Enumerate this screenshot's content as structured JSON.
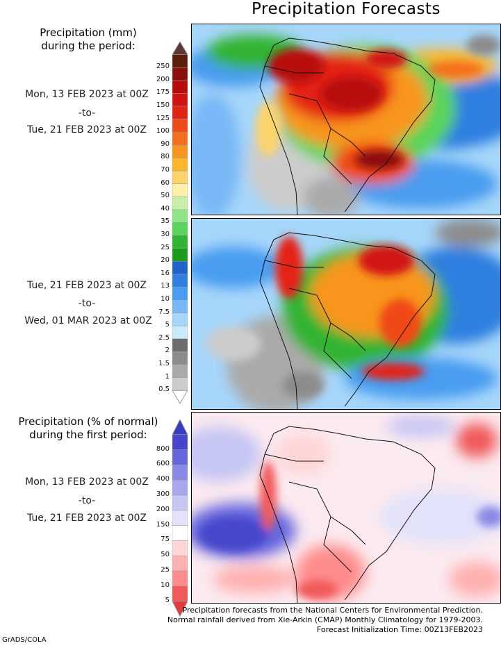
{
  "title": "Precipitation Forecasts",
  "top_heading": [
    "Precipitation (mm)",
    "during the period:"
  ],
  "period1": {
    "start": "Mon, 13 FEB 2023 at 00Z",
    "sep": "-to-",
    "end": "Tue, 21 FEB 2023 at 00Z"
  },
  "period2": {
    "start": "Tue, 21 FEB 2023 at 00Z",
    "sep": "-to-",
    "end": "Wed, 01 MAR 2023 at 00Z"
  },
  "bottom_heading": [
    "Precipitation (% of normal)",
    "during the first period:"
  ],
  "period3": {
    "start": "Mon, 13 FEB 2023 at 00Z",
    "sep": "-to-",
    "end": "Tue, 21 FEB 2023 at 00Z"
  },
  "mm_colorbar": {
    "labels": [
      "250",
      "200",
      "175",
      "150",
      "125",
      "100",
      "90",
      "80",
      "70",
      "60",
      "50",
      "40",
      "35",
      "30",
      "25",
      "20",
      "16",
      "13",
      "10",
      "7.5",
      "5",
      "2.5",
      "2",
      "1.5",
      "1",
      "0.5"
    ],
    "colors": [
      "#5a1e0a",
      "#8b0f0a",
      "#b80c0c",
      "#d11212",
      "#e42314",
      "#f04a18",
      "#f36e1e",
      "#f8951f",
      "#fbb62a",
      "#fdd46a",
      "#fdf0a8",
      "#c8f0a8",
      "#8fe486",
      "#5ad45a",
      "#32b432",
      "#1c9a1c",
      "#1e64c8",
      "#2f7fe0",
      "#4a9cf0",
      "#78b8f6",
      "#a6d6fa",
      "#c8ecfa",
      "#6c6c6c",
      "#8c8c8c",
      "#aaaaaa",
      "#cccccc"
    ],
    "top_color": "#5a3a34"
  },
  "pct_colorbar": {
    "labels": [
      "800",
      "600",
      "400",
      "300",
      "200",
      "150",
      "75",
      "50",
      "25",
      "10",
      "5"
    ],
    "colors": [
      "#4646cc",
      "#6666dd",
      "#8a8ae6",
      "#a8a8ee",
      "#c6c6f4",
      "#e2e2fa",
      "#ffffff",
      "#ffd6d6",
      "#ffb0b0",
      "#ff8c8c",
      "#f05a5a"
    ],
    "top_color": "#3c3cc0",
    "bottom_color": "#e43c3c"
  },
  "footer": [
    "Precipitation forecasts from the National Centers for Environmental Prediction.",
    "Normal rainfall derived from Xie-Arkin (CMAP) Monthly Climatology for 1979-2003.",
    "Forecast Initialization Time: 00Z13FEB2023"
  ],
  "credit": "GrADS/COLA"
}
